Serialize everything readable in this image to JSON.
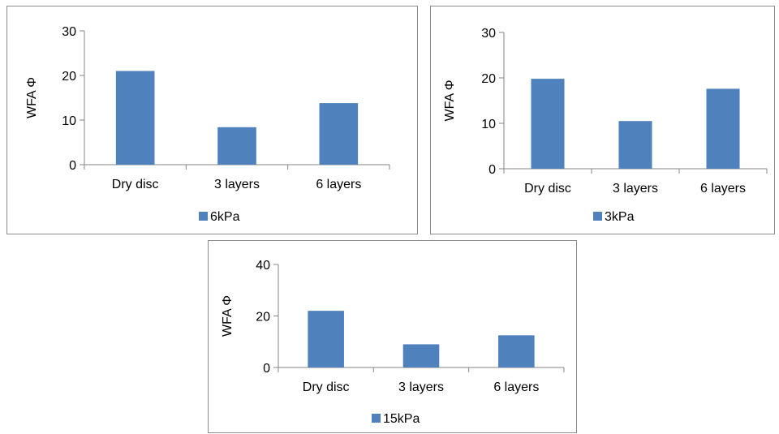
{
  "colors": {
    "bar": "#4f81bd",
    "axis": "#868686",
    "frame": "#8c8c8c"
  },
  "chart_data": [
    {
      "type": "bar",
      "categories": [
        "Dry disc",
        "3 layers",
        "6 layers"
      ],
      "series": [
        {
          "name": "6kPa",
          "values": [
            21,
            8.4,
            13.8
          ]
        }
      ],
      "ylabel": "WFA Φ",
      "yticks": [
        0,
        10,
        20,
        30
      ],
      "ylim": [
        0,
        30
      ],
      "legend": "bottom"
    },
    {
      "type": "bar",
      "categories": [
        "Dry disc",
        "3 layers",
        "6 layers"
      ],
      "series": [
        {
          "name": "3kPa",
          "values": [
            19.8,
            10.5,
            17.6
          ]
        }
      ],
      "ylabel": "WFA Φ",
      "yticks": [
        0,
        10,
        20,
        30
      ],
      "ylim": [
        0,
        30
      ],
      "legend": "bottom"
    },
    {
      "type": "bar",
      "categories": [
        "Dry disc",
        "3 layers",
        "6 layers"
      ],
      "series": [
        {
          "name": "15kPa",
          "values": [
            22,
            9,
            12.5
          ]
        }
      ],
      "ylabel": "WFA Φ",
      "yticks": [
        0,
        20,
        40
      ],
      "ylim": [
        0,
        40
      ],
      "legend": "bottom"
    }
  ]
}
